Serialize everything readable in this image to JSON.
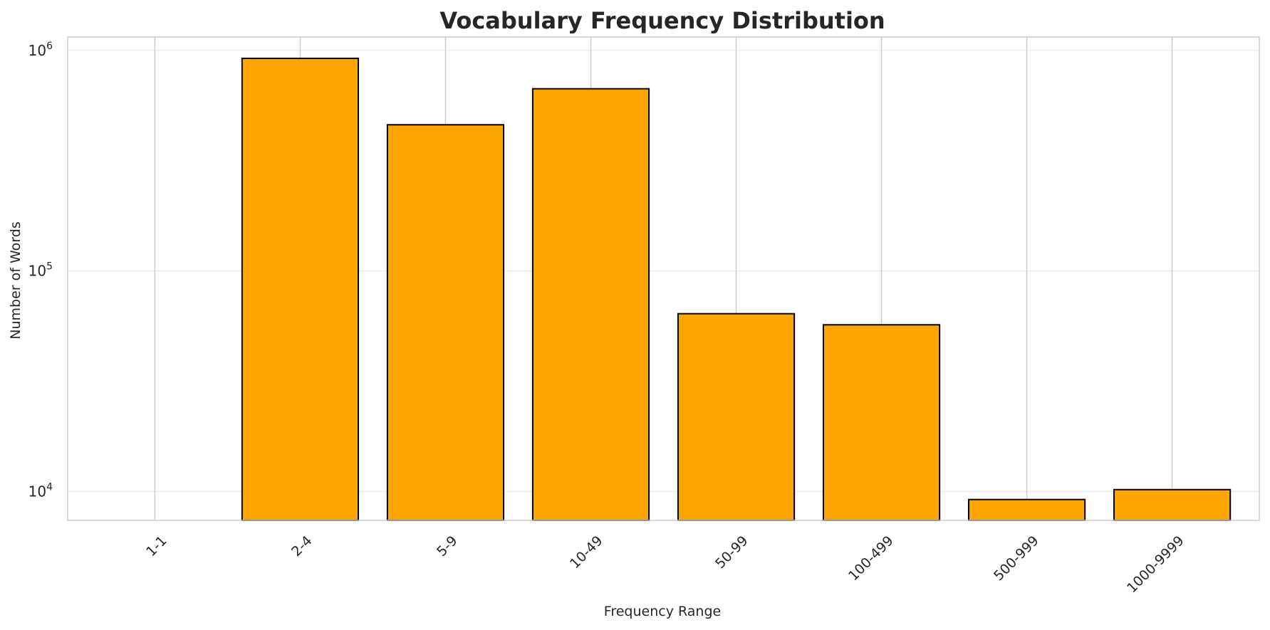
{
  "chart_data": {
    "type": "bar",
    "title": "Vocabulary Frequency Distribution",
    "xlabel": "Frequency Range",
    "ylabel": "Number of Words",
    "yscale": "log",
    "ylim": [
      7400,
      1150000
    ],
    "yticks": [
      {
        "value": 10000,
        "base": "10",
        "exp": "4"
      },
      {
        "value": 100000,
        "base": "10",
        "exp": "5"
      },
      {
        "value": 1000000,
        "base": "10",
        "exp": "6"
      }
    ],
    "categories": [
      "1-1",
      "2-4",
      "5-9",
      "10-49",
      "50-99",
      "100-499",
      "500-999",
      "1000-9999"
    ],
    "values": [
      0,
      920000,
      460000,
      670000,
      64000,
      57000,
      9200,
      10200
    ],
    "grid": true,
    "colors": {
      "bar": "#ffa500",
      "edge": "#000000",
      "grid": "#cccccc",
      "minor_grid": "#ebebeb",
      "frame": "#cccccc"
    }
  }
}
